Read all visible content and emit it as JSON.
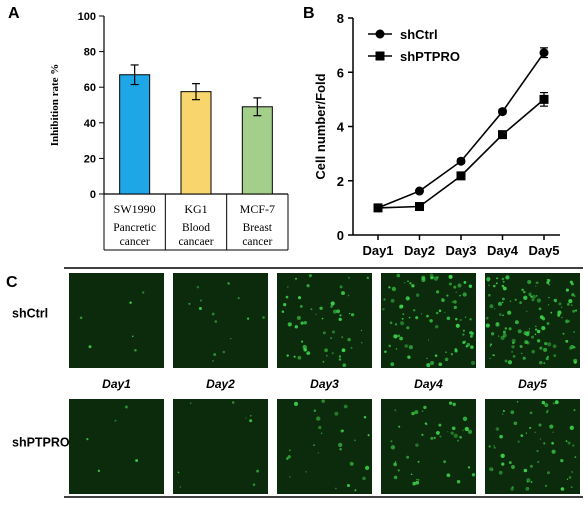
{
  "panels": {
    "a_label": "A",
    "b_label": "B",
    "c_label": "C"
  },
  "chart_data": [
    {
      "type": "bar",
      "title": "",
      "ylabel": "Inhibition rate %",
      "xlabel": "",
      "ylim": [
        0,
        100
      ],
      "yticks": [
        "0",
        "20",
        "40",
        "60",
        "80",
        "100"
      ],
      "categories": [
        "SW1990",
        "KG1",
        "MCF-7"
      ],
      "sublabels": [
        [
          "Pancretic",
          "cancer"
        ],
        [
          "Blood",
          "cancaer"
        ],
        [
          "Breast",
          "cancer"
        ]
      ],
      "values": [
        67,
        57.5,
        49
      ],
      "errors": [
        5.5,
        4.5,
        5
      ],
      "colors": [
        "#1ea7e6",
        "#f9d56e",
        "#a3cf8a"
      ],
      "grid": false
    },
    {
      "type": "line",
      "title": "",
      "ylabel": "Cell number/Fold",
      "xlabel": "",
      "ylim": [
        0,
        8
      ],
      "yticks": [
        "0",
        "2",
        "4",
        "6",
        "8"
      ],
      "categories": [
        "Day1",
        "Day2",
        "Day3",
        "Day4",
        "Day5"
      ],
      "legend_position": "top-left",
      "series": [
        {
          "name": "shCtrl",
          "marker": "circle",
          "values": [
            1.0,
            1.62,
            2.72,
            4.55,
            6.72
          ],
          "errors": [
            0,
            0.05,
            0.08,
            0.08,
            0.18
          ]
        },
        {
          "name": "shPTPRO",
          "marker": "square",
          "values": [
            1.0,
            1.05,
            2.18,
            3.7,
            5.0
          ],
          "errors": [
            0,
            0.05,
            0.08,
            0.08,
            0.25
          ]
        }
      ],
      "grid": false
    }
  ],
  "micrographs": {
    "rows": [
      "shCtrl",
      "shPTPRO"
    ],
    "days": [
      "Day1",
      "Day2",
      "Day3",
      "Day4",
      "Day5"
    ],
    "cell_color": "#3cd24a",
    "background_color": "#0c2a0c"
  }
}
